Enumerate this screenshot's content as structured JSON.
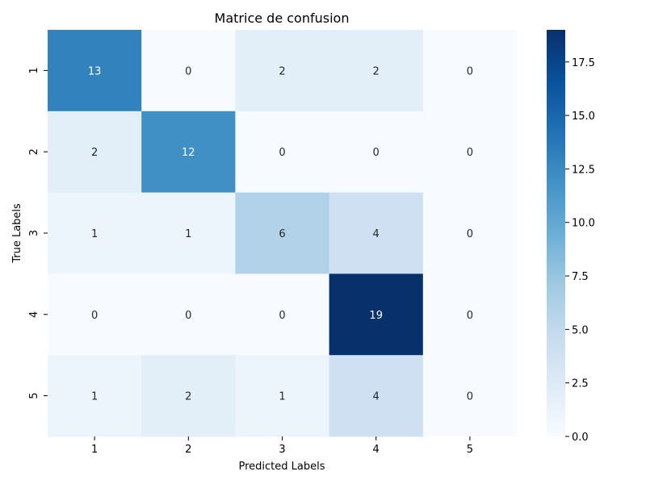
{
  "chart_data": {
    "type": "heatmap",
    "title": "Matrice de confusion",
    "xlabel": "Predicted Labels",
    "ylabel": "True Labels",
    "x_categories": [
      "1",
      "2",
      "3",
      "4",
      "5"
    ],
    "y_categories": [
      "1",
      "2",
      "3",
      "4",
      "5"
    ],
    "values": [
      [
        13,
        0,
        2,
        2,
        0
      ],
      [
        2,
        12,
        0,
        0,
        0
      ],
      [
        1,
        1,
        6,
        4,
        0
      ],
      [
        0,
        0,
        0,
        19,
        0
      ],
      [
        1,
        2,
        1,
        4,
        0
      ]
    ],
    "colorbar": {
      "min": 0,
      "max": 19,
      "ticks": [
        0.0,
        2.5,
        5.0,
        7.5,
        10.0,
        12.5,
        15.0,
        17.5
      ],
      "tick_labels": [
        "0.0",
        "2.5",
        "5.0",
        "7.5",
        "10.0",
        "12.5",
        "15.0",
        "17.5"
      ]
    },
    "colormap": "Blues",
    "color_stops": [
      "#f7fbff",
      "#deebf7",
      "#c6dbef",
      "#9ecae1",
      "#6baed6",
      "#4292c6",
      "#2171b5",
      "#08519c",
      "#08306b"
    ]
  }
}
